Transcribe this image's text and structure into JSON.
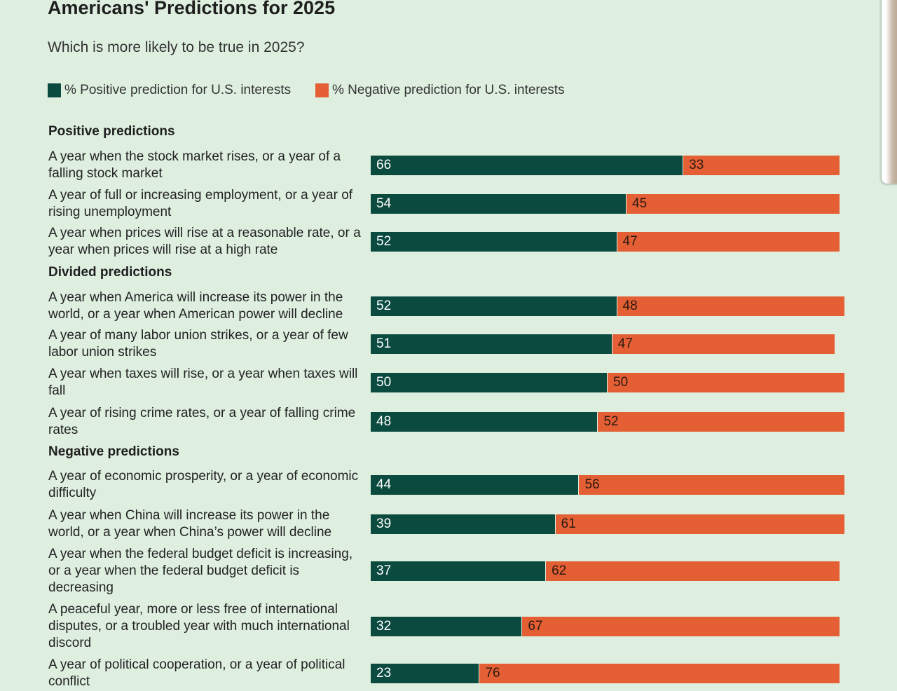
{
  "chart_data": {
    "type": "bar",
    "stacked": true,
    "orientation": "horizontal",
    "title": "Americans' Predictions for 2025",
    "subtitle": "Which is more likely to be true in 2025?",
    "series": [
      {
        "name": "% Positive prediction for U.S. interests",
        "color": "#0b4a3f"
      },
      {
        "name": "% Negative prediction for U.S. interests",
        "color": "#e55f35"
      }
    ],
    "groups": [
      {
        "name": "Positive predictions",
        "categories": [
          "A year when the stock market rises, or a year of a falling stock market",
          "A year of full or increasing employment, or a year of rising unemployment",
          "A year when prices will rise at a reasonable rate, or a year when prices will rise at a high rate"
        ],
        "series": [
          {
            "values": [
              66,
              54,
              52
            ]
          },
          {
            "values": [
              33,
              45,
              47
            ]
          }
        ]
      },
      {
        "name": "Divided predictions",
        "categories": [
          "A year when America will increase its power in the world, or a year when American power will decline",
          "A year of many labor union strikes, or a year of few labor union strikes",
          "A year when taxes will rise, or a year when taxes will fall",
          "A year of rising crime rates, or a year of falling crime rates"
        ],
        "series": [
          {
            "values": [
              52,
              51,
              50,
              48
            ]
          },
          {
            "values": [
              48,
              47,
              50,
              52
            ]
          }
        ]
      },
      {
        "name": "Negative predictions",
        "categories": [
          "A year of economic prosperity, or a year of economic difficulty",
          "A year when China will increase its power in the world, or a year when China’s power will decline",
          "A year when the federal budget deficit is increasing, or a year when the federal budget deficit is decreasing",
          "A peaceful year, more or less free of international disputes, or a troubled year with much international discord",
          "A year of political cooperation, or a year of political conflict"
        ],
        "series": [
          {
            "values": [
              44,
              39,
              37,
              32,
              23
            ]
          },
          {
            "values": [
              56,
              61,
              62,
              67,
              76
            ]
          }
        ]
      }
    ]
  }
}
